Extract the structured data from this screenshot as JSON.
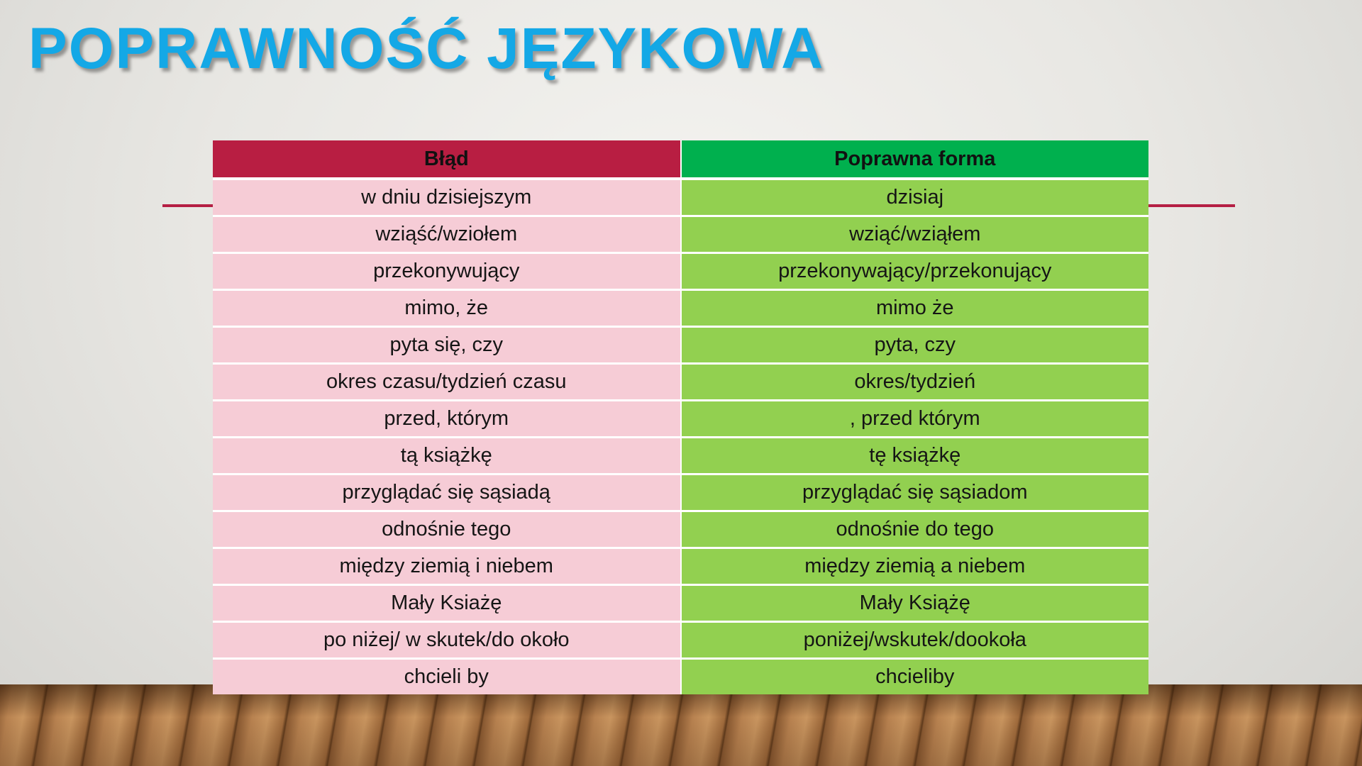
{
  "title": "POPRAWNOŚĆ JĘZYKOWA",
  "colors": {
    "title": "#14a8e6",
    "header_error": "#b81e42",
    "header_correct": "#00b04e",
    "row_error": "#f6ccd6",
    "row_correct": "#92d050",
    "accent_line": "#b51f44"
  },
  "table": {
    "headers": [
      "Błąd",
      "Poprawna forma"
    ],
    "rows": [
      [
        "w dniu dzisiejszym",
        "dzisiaj"
      ],
      [
        "wziąść/wziołem",
        "wziąć/wziąłem"
      ],
      [
        "przekonywujący",
        "przekonywający/przekonujący"
      ],
      [
        "mimo, że",
        "mimo że"
      ],
      [
        "pyta się, czy",
        "pyta, czy"
      ],
      [
        "okres czasu/tydzień czasu",
        "okres/tydzień"
      ],
      [
        "przed, którym",
        ", przed którym"
      ],
      [
        "tą książkę",
        "tę książkę"
      ],
      [
        "przyglądać się sąsiadą",
        "przyglądać się sąsiadom"
      ],
      [
        "odnośnie tego",
        "odnośnie do tego"
      ],
      [
        "między ziemią i niebem",
        "między ziemią a niebem"
      ],
      [
        "Mały Ksiażę",
        "Mały Książę"
      ],
      [
        "po niżej/ w skutek/do około",
        "poniżej/wskutek/dookoła"
      ],
      [
        "chcieli by",
        "chcieliby"
      ]
    ]
  }
}
